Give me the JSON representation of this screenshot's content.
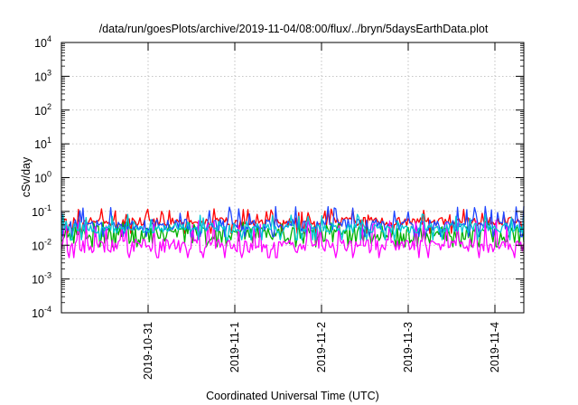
{
  "chart_data": {
    "type": "line",
    "title": "/data/run/goesPlots/archive/2019-11-04/08:00/flux/../bryn/5daysEarthData.plot",
    "xlabel": "Coordinated Universal Time (UTC)",
    "ylabel": "cSv/day",
    "yscale": "log",
    "ylim": [
      0.0001,
      10000
    ],
    "xlim": [
      "2019-10-30T00:00",
      "2019-11-04T08:00"
    ],
    "grid": true,
    "y_ticks": [
      {
        "base": "10",
        "exp": "-4"
      },
      {
        "base": "10",
        "exp": "-3"
      },
      {
        "base": "10",
        "exp": "-2"
      },
      {
        "base": "10",
        "exp": "-1"
      },
      {
        "base": "10",
        "exp": "0"
      },
      {
        "base": "10",
        "exp": "1"
      },
      {
        "base": "10",
        "exp": "2"
      },
      {
        "base": "10",
        "exp": "3"
      },
      {
        "base": "10",
        "exp": "4"
      }
    ],
    "x_ticks": [
      "2019-10-31",
      "2019-11-1",
      "2019-11-2",
      "2019-11-3",
      "2019-11-4"
    ],
    "series": [
      {
        "color": "#ff0000",
        "base": 0.05,
        "spread": 1.35,
        "spike": 0.1
      },
      {
        "color": "#00b000",
        "base": 0.02,
        "spread": 1.8,
        "spike": 0.04
      },
      {
        "color": "#1e46ff",
        "base": 0.04,
        "spread": 1.5,
        "spike": 0.12
      },
      {
        "color": "#ff00ff",
        "base": 0.0095,
        "spread": 1.6,
        "spike": 0.045
      },
      {
        "color": "#00c8d2",
        "base": 0.032,
        "spread": 1.4,
        "spike": 0.07
      }
    ]
  }
}
